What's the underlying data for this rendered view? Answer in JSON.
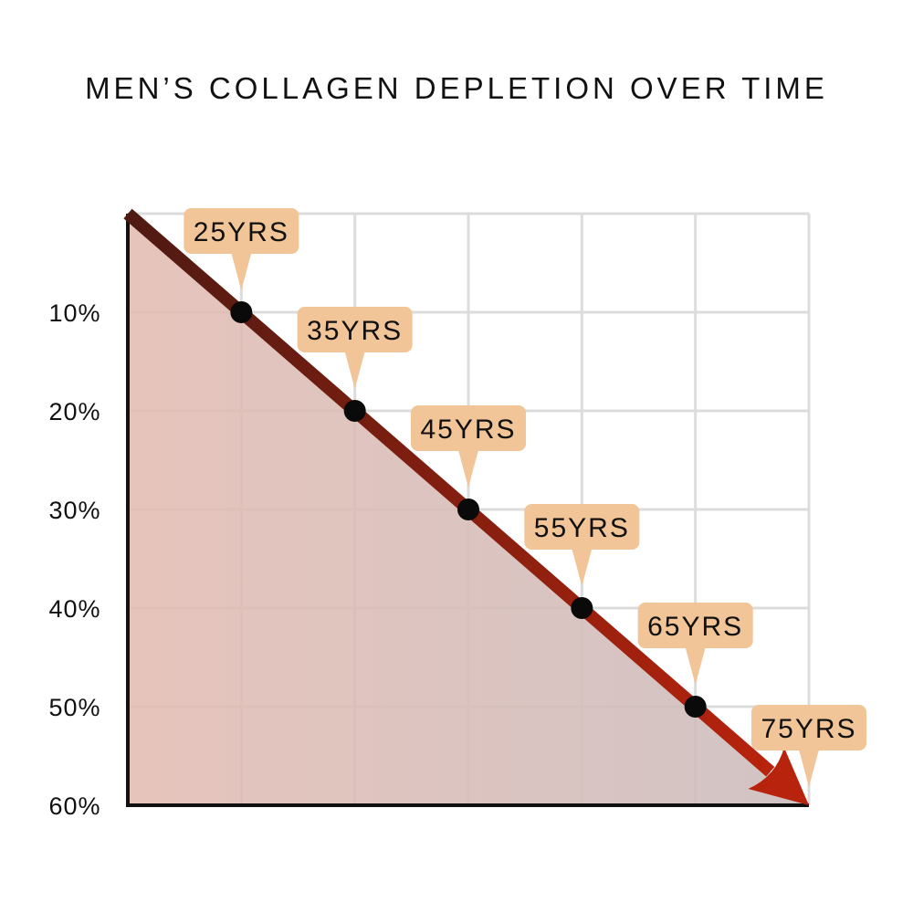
{
  "chart_data": {
    "type": "area",
    "title": "MEN’S COLLAGEN DEPLETION OVER TIME",
    "xlabel": "",
    "ylabel": "",
    "y_ticks": [
      "10%",
      "20%",
      "30%",
      "40%",
      "50%",
      "60%"
    ],
    "ylim": [
      0,
      60
    ],
    "y_inverted": true,
    "x": [
      15,
      25,
      35,
      45,
      55,
      65,
      75
    ],
    "xlim": [
      15,
      75
    ],
    "values": [
      0,
      10,
      20,
      30,
      40,
      50,
      60
    ],
    "point_labels": [
      {
        "age": 25,
        "text": "25YRS",
        "marker": true
      },
      {
        "age": 35,
        "text": "35YRS",
        "marker": true
      },
      {
        "age": 45,
        "text": "45YRS",
        "marker": true
      },
      {
        "age": 55,
        "text": "55YRS",
        "marker": true
      },
      {
        "age": 65,
        "text": "65YRS",
        "marker": true
      },
      {
        "age": 75,
        "text": "75YRS",
        "marker": false
      }
    ],
    "grid": true,
    "colors": {
      "fill_start": "#e3bcb3",
      "fill_end": "#cbbcbc",
      "line_start": "#4e1a12",
      "line_end": "#b8230d",
      "marker": "#0a0a0a",
      "callout_bg": "#f1c597",
      "grid": "#dcdcdc",
      "axis": "#111111"
    }
  }
}
